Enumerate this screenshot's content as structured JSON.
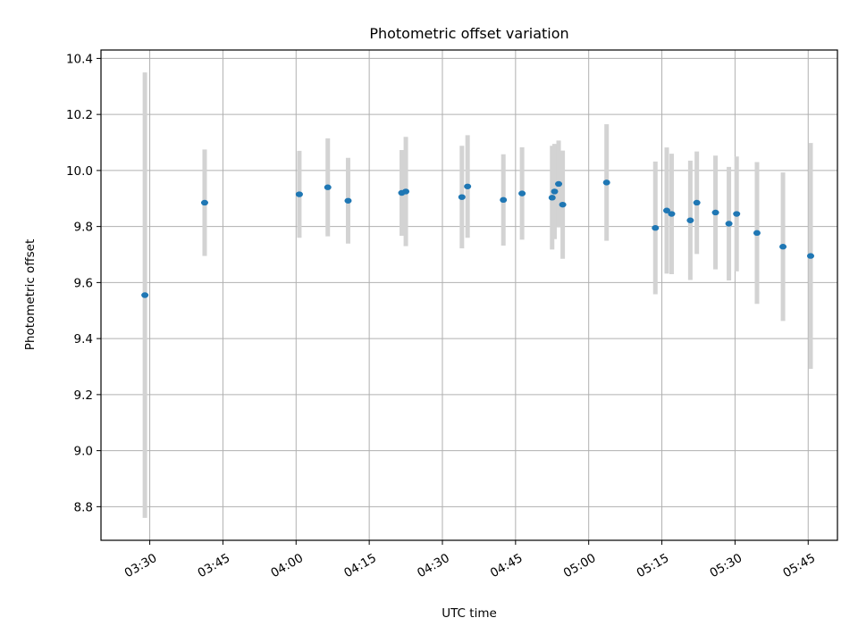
{
  "chart_data": {
    "type": "scatter",
    "title": "Photometric offset variation",
    "xlabel": "UTC time",
    "ylabel": "Photometric offset",
    "x_axis_type": "time",
    "xlim": [
      "03:20",
      "05:51"
    ],
    "ylim": [
      8.68,
      10.43
    ],
    "grid": true,
    "xticks": [
      "03:30",
      "03:45",
      "04:00",
      "04:15",
      "04:30",
      "04:45",
      "05:00",
      "05:15",
      "05:30",
      "05:45"
    ],
    "yticks": [
      8.8,
      9.0,
      9.2,
      9.4,
      9.6,
      9.8,
      10.0,
      10.2,
      10.4
    ],
    "series": [
      {
        "marker_color": "#1f77b4",
        "errorbar_color": "#d3d3d3",
        "points": [
          {
            "time": "03:29:00",
            "y": 9.555,
            "err": 0.795
          },
          {
            "time": "03:41:15",
            "y": 9.885,
            "err": 0.19
          },
          {
            "time": "04:00:40",
            "y": 9.915,
            "err": 0.155
          },
          {
            "time": "04:06:30",
            "y": 9.94,
            "err": 0.175
          },
          {
            "time": "04:10:40",
            "y": 9.892,
            "err": 0.153
          },
          {
            "time": "04:21:40",
            "y": 9.92,
            "err": 0.153
          },
          {
            "time": "04:22:30",
            "y": 9.925,
            "err": 0.195
          },
          {
            "time": "04:34:00",
            "y": 9.905,
            "err": 0.183
          },
          {
            "time": "04:35:10",
            "y": 9.943,
            "err": 0.183
          },
          {
            "time": "04:42:30",
            "y": 9.895,
            "err": 0.163
          },
          {
            "time": "04:46:20",
            "y": 9.918,
            "err": 0.165
          },
          {
            "time": "04:52:30",
            "y": 9.903,
            "err": 0.185
          },
          {
            "time": "04:53:00",
            "y": 9.925,
            "err": 0.17
          },
          {
            "time": "04:53:50",
            "y": 9.952,
            "err": 0.155
          },
          {
            "time": "04:54:40",
            "y": 9.878,
            "err": 0.193
          },
          {
            "time": "05:03:40",
            "y": 9.957,
            "err": 0.208
          },
          {
            "time": "05:13:40",
            "y": 9.795,
            "err": 0.237
          },
          {
            "time": "05:16:00",
            "y": 9.857,
            "err": 0.225
          },
          {
            "time": "05:17:00",
            "y": 9.845,
            "err": 0.215
          },
          {
            "time": "05:20:50",
            "y": 9.822,
            "err": 0.213
          },
          {
            "time": "05:22:10",
            "y": 9.885,
            "err": 0.183
          },
          {
            "time": "05:26:00",
            "y": 9.85,
            "err": 0.203
          },
          {
            "time": "05:28:45",
            "y": 9.81,
            "err": 0.203
          },
          {
            "time": "05:30:20",
            "y": 9.845,
            "err": 0.205
          },
          {
            "time": "05:34:30",
            "y": 9.777,
            "err": 0.253
          },
          {
            "time": "05:39:50",
            "y": 9.728,
            "err": 0.265
          },
          {
            "time": "05:45:30",
            "y": 9.695,
            "err": 0.403
          }
        ]
      }
    ]
  }
}
